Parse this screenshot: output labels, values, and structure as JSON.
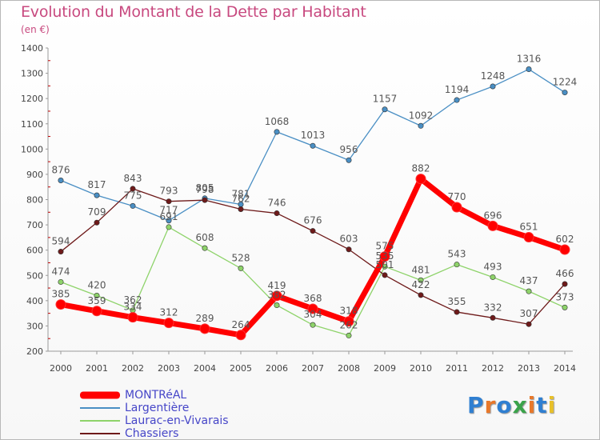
{
  "title": "Evolution du Montant de la Dette par Habitant",
  "subtitle": "(en €)",
  "logo": {
    "text": "Proxiti",
    "colors": [
      "#2f7fd1",
      "#e8782a",
      "#2f7fd1",
      "#3aa34a",
      "#e8782a",
      "#2f7fd1",
      "#e8c02a"
    ]
  },
  "chart_data": {
    "type": "line",
    "title": "Evolution du Montant de la Dette par Habitant",
    "ylabel": "(en €)",
    "ylim": [
      200,
      1400
    ],
    "yticks": [
      200,
      300,
      400,
      500,
      600,
      700,
      800,
      900,
      1000,
      1100,
      1200,
      1300,
      1400
    ],
    "grid": false,
    "legend_position": "bottom-left",
    "x": [
      "2000",
      "2001",
      "2002",
      "2003",
      "2004",
      "2005",
      "2006",
      "2007",
      "2008",
      "2009",
      "2010",
      "2011",
      "2012",
      "2013",
      "2014"
    ],
    "series": [
      {
        "name": "Largentière",
        "color": "#4a8fc4",
        "values": [
          876,
          817,
          775,
          717,
          805,
          781,
          1068,
          1013,
          956,
          1157,
          1092,
          1194,
          1248,
          1316,
          1224
        ]
      },
      {
        "name": "Laurac-en-Vivarais",
        "color": "#8ed36a",
        "values": [
          474,
          420,
          362,
          691,
          608,
          528,
          382,
          304,
          262,
          535,
          481,
          543,
          493,
          437,
          373
        ]
      },
      {
        "name": "Chassiers",
        "color": "#6e1a1a",
        "values": [
          594,
          709,
          843,
          793,
          798,
          762,
          746,
          676,
          603,
          501,
          422,
          355,
          332,
          307,
          466
        ]
      },
      {
        "name": "MONTRéAL",
        "color": "#ff0000",
        "values": [
          385,
          359,
          334,
          312,
          289,
          264,
          419,
          368,
          318,
          575,
          882,
          770,
          696,
          651,
          602
        ]
      }
    ]
  },
  "legend": [
    {
      "name": "MONTRéAL",
      "color": "#ff0000"
    },
    {
      "name": "Largentière",
      "color": "#4a8fc4"
    },
    {
      "name": "Laurac-en-Vivarais",
      "color": "#8ed36a"
    },
    {
      "name": "Chassiers",
      "color": "#6e1a1a"
    }
  ]
}
